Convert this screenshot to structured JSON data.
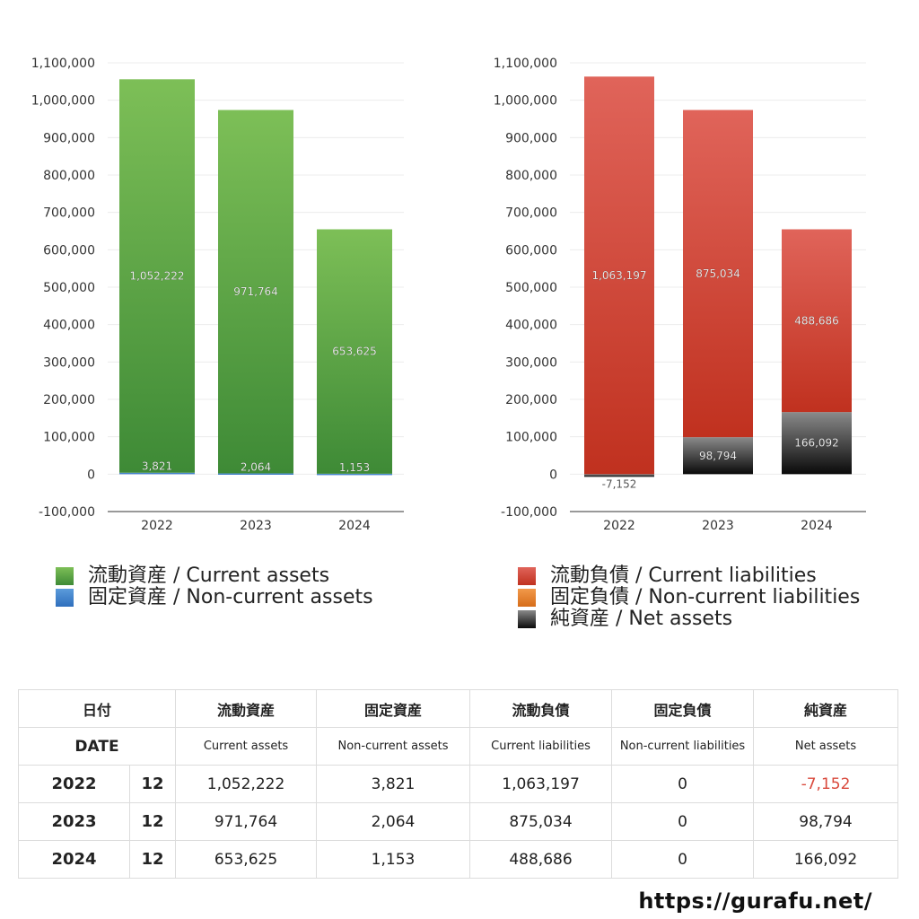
{
  "colors": {
    "current_assets": [
      "#7dbf57",
      "#3e8a36"
    ],
    "non_current_assets": [
      "#5b9bdb",
      "#2f6fbd"
    ],
    "current_liabilities": [
      "#e0645a",
      "#c0311f"
    ],
    "non_current_liabilities": [
      "#f2994a",
      "#d66d1a"
    ],
    "net_assets": [
      "#8a8a8a",
      "#0a0a0a"
    ],
    "negative_text": "#d9483b"
  },
  "chart_data": [
    {
      "type": "bar",
      "stacked": true,
      "categories": [
        "2022",
        "2023",
        "2024"
      ],
      "ylim": [
        -100000,
        1100000
      ],
      "yticks": [
        -100000,
        0,
        100000,
        200000,
        300000,
        400000,
        500000,
        600000,
        700000,
        800000,
        900000,
        1000000,
        1100000
      ],
      "ytick_labels": [
        "-100,000",
        "0",
        "100,000",
        "200,000",
        "300,000",
        "400,000",
        "500,000",
        "600,000",
        "700,000",
        "800,000",
        "900,000",
        "1,000,000",
        "1,100,000"
      ],
      "grid": true,
      "legend_position": "bottom",
      "series": [
        {
          "name": "固定資産 / Non-current assets",
          "key": "non_current_assets",
          "values": [
            3821,
            2064,
            1153
          ],
          "labels": [
            "3,821",
            "2,064",
            "1,153"
          ]
        },
        {
          "name": "流動資産 / Current assets",
          "key": "current_assets",
          "values": [
            1052222,
            971764,
            653625
          ],
          "labels": [
            "1,052,222",
            "971,764",
            "653,625"
          ]
        }
      ],
      "legend": [
        {
          "name": "流動資産 / Current assets",
          "key": "current_assets"
        },
        {
          "name": "固定資産 / Non-current assets",
          "key": "non_current_assets"
        }
      ]
    },
    {
      "type": "bar",
      "stacked": true,
      "categories": [
        "2022",
        "2023",
        "2024"
      ],
      "ylim": [
        -100000,
        1100000
      ],
      "yticks": [
        -100000,
        0,
        100000,
        200000,
        300000,
        400000,
        500000,
        600000,
        700000,
        800000,
        900000,
        1000000,
        1100000
      ],
      "ytick_labels": [
        "-100,000",
        "0",
        "100,000",
        "200,000",
        "300,000",
        "400,000",
        "500,000",
        "600,000",
        "700,000",
        "800,000",
        "900,000",
        "1,000,000",
        "1,100,000"
      ],
      "grid": true,
      "legend_position": "bottom",
      "series": [
        {
          "name": "純資産 / Net assets",
          "key": "net_assets",
          "values": [
            -7152,
            98794,
            166092
          ],
          "labels": [
            "-7,152",
            "98,794",
            "166,092"
          ]
        },
        {
          "name": "固定負債 / Non-current liabilities",
          "key": "non_current_liabilities",
          "values": [
            0,
            0,
            0
          ],
          "labels": [
            "",
            "",
            ""
          ]
        },
        {
          "name": "流動負債 / Current liabilities",
          "key": "current_liabilities",
          "values": [
            1063197,
            875034,
            488686
          ],
          "labels": [
            "1,063,197",
            "875,034",
            "488,686"
          ]
        }
      ],
      "legend": [
        {
          "name": "流動負債 / Current liabilities",
          "key": "current_liabilities"
        },
        {
          "name": "固定負債 / Non-current liabilities",
          "key": "non_current_liabilities"
        },
        {
          "name": "純資産 / Net assets",
          "key": "net_assets"
        }
      ]
    }
  ],
  "table": {
    "date_header_jp": "日付",
    "date_header_en": "DATE",
    "columns": [
      {
        "jp": "流動資産",
        "en": "Current assets"
      },
      {
        "jp": "固定資産",
        "en": "Non-current assets"
      },
      {
        "jp": "流動負債",
        "en": "Current liabilities"
      },
      {
        "jp": "固定負債",
        "en": "Non-current liabilities"
      },
      {
        "jp": "純資産",
        "en": "Net assets"
      }
    ],
    "rows": [
      {
        "year": "2022",
        "month": "12",
        "values": [
          "1,052,222",
          "3,821",
          "1,063,197",
          "0",
          "-7,152"
        ]
      },
      {
        "year": "2023",
        "month": "12",
        "values": [
          "971,764",
          "2,064",
          "875,034",
          "0",
          "98,794"
        ]
      },
      {
        "year": "2024",
        "month": "12",
        "values": [
          "653,625",
          "1,153",
          "488,686",
          "0",
          "166,092"
        ]
      }
    ]
  },
  "footer": {
    "url": "https://gurafu.net/"
  }
}
